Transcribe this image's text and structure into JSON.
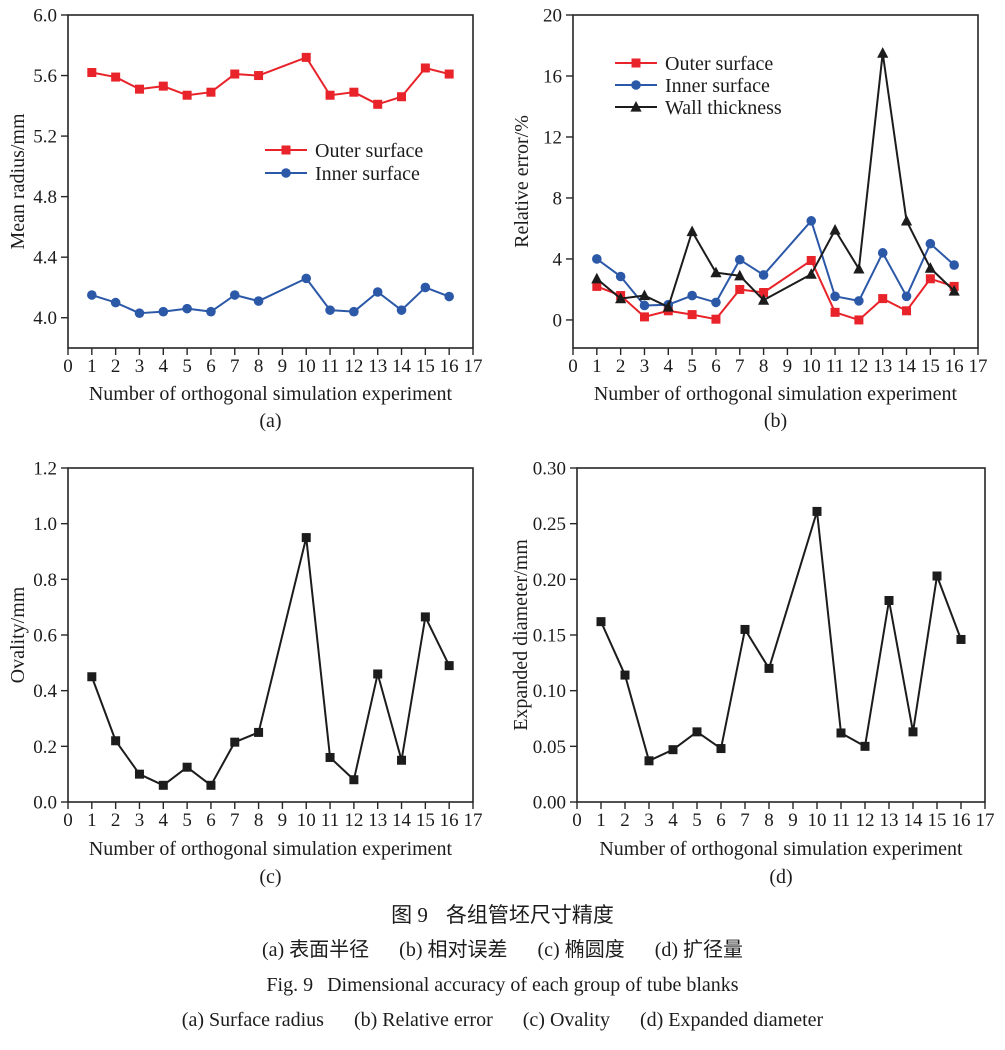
{
  "caption": {
    "zh_title_prefix": "图 9",
    "zh_title": "各组管坯尺寸精度",
    "zh_parts": [
      "(a) 表面半径",
      "(b) 相对误差",
      "(c) 椭圆度",
      "(d) 扩径量"
    ],
    "en_title_prefix": "Fig. 9",
    "en_title": "Dimensional accuracy of each group of tube blanks",
    "en_parts": [
      "(a) Surface radius",
      "(b) Relative error",
      "(c) Ovality",
      "(d) Expanded diameter"
    ]
  },
  "chart_data": [
    {
      "type": "line",
      "tag": "(a)",
      "xlabel": "Number of orthogonal simulation experiment",
      "ylabel": "Mean radius/mm",
      "xlim": [
        0,
        17
      ],
      "ylim": [
        3.8,
        6.0
      ],
      "xticks": [
        "0",
        "1",
        "2",
        "3",
        "4",
        "5",
        "6",
        "7",
        "8",
        "9",
        "10",
        "11",
        "12",
        "13",
        "14",
        "15",
        "16",
        "17"
      ],
      "yticks": [
        "4.0",
        "4.4",
        "4.8",
        "5.2",
        "5.6",
        "6.0"
      ],
      "x": [
        1,
        2,
        3,
        4,
        5,
        6,
        7,
        8,
        10,
        11,
        12,
        13,
        14,
        15,
        16
      ],
      "grid": false,
      "legend_entries": [
        "Outer surface",
        "Inner surface"
      ],
      "series": [
        {
          "name": "Outer surface",
          "color": "#e8232a",
          "marker": "square",
          "values": [
            5.62,
            5.59,
            5.51,
            5.53,
            5.47,
            5.49,
            5.61,
            5.6,
            5.72,
            5.47,
            5.49,
            5.41,
            5.46,
            5.65,
            5.61
          ]
        },
        {
          "name": "Inner surface",
          "color": "#2c58a8",
          "marker": "circle",
          "values": [
            4.15,
            4.1,
            4.03,
            4.04,
            4.06,
            4.04,
            4.15,
            4.11,
            4.26,
            4.05,
            4.04,
            4.17,
            4.05,
            4.2,
            4.14
          ]
        }
      ]
    },
    {
      "type": "line",
      "tag": "(b)",
      "xlabel": "Number of orthogonal simulation experiment",
      "ylabel": "Relative error/%",
      "xlim": [
        0,
        17
      ],
      "ylim": [
        -1.84,
        20
      ],
      "xticks": [
        "0",
        "1",
        "2",
        "3",
        "4",
        "5",
        "6",
        "7",
        "8",
        "9",
        "10",
        "11",
        "12",
        "13",
        "14",
        "15",
        "16",
        "17"
      ],
      "yticks": [
        "0",
        "4",
        "8",
        "12",
        "16",
        "20"
      ],
      "x": [
        1,
        2,
        3,
        4,
        5,
        6,
        7,
        8,
        10,
        11,
        12,
        13,
        14,
        15,
        16
      ],
      "grid": false,
      "legend_entries": [
        "Outer surface",
        "Inner surface",
        "Wall thickness"
      ],
      "series": [
        {
          "name": "Outer surface",
          "color": "#e8232a",
          "marker": "square",
          "values": [
            2.2,
            1.6,
            0.2,
            0.6,
            0.35,
            0.05,
            2.0,
            1.8,
            3.9,
            0.5,
            0.0,
            1.4,
            0.6,
            2.7,
            2.2
          ]
        },
        {
          "name": "Inner surface",
          "color": "#2c58a8",
          "marker": "circle",
          "values": [
            4.0,
            2.85,
            0.95,
            1.0,
            1.6,
            1.15,
            3.95,
            2.95,
            6.5,
            1.55,
            1.25,
            4.4,
            1.55,
            5.0,
            3.6
          ]
        },
        {
          "name": "Wall thickness",
          "color": "#1c1c1c",
          "marker": "triangle",
          "values": [
            2.7,
            1.4,
            1.6,
            0.85,
            5.8,
            3.1,
            2.9,
            1.3,
            3.0,
            5.9,
            3.35,
            17.5,
            6.5,
            3.4,
            1.9
          ]
        }
      ]
    },
    {
      "type": "line",
      "tag": "(c)",
      "xlabel": "Number of orthogonal simulation experiment",
      "ylabel": "Ovality/mm",
      "xlim": [
        0,
        17
      ],
      "ylim": [
        0.0,
        1.2
      ],
      "xticks": [
        "0",
        "1",
        "2",
        "3",
        "4",
        "5",
        "6",
        "7",
        "8",
        "9",
        "10",
        "11",
        "12",
        "13",
        "14",
        "15",
        "16",
        "17"
      ],
      "yticks": [
        "0.0",
        "0.2",
        "0.4",
        "0.6",
        "0.8",
        "1.0",
        "1.2"
      ],
      "x": [
        1,
        2,
        3,
        4,
        5,
        6,
        7,
        8,
        10,
        11,
        12,
        13,
        14,
        15,
        16
      ],
      "grid": false,
      "legend_entries": [],
      "series": [
        {
          "name": "Ovality",
          "color": "#1c1c1c",
          "marker": "square",
          "values": [
            0.45,
            0.22,
            0.1,
            0.06,
            0.125,
            0.06,
            0.215,
            0.25,
            0.95,
            0.16,
            0.08,
            0.46,
            0.15,
            0.665,
            0.49
          ]
        }
      ]
    },
    {
      "type": "line",
      "tag": "(d)",
      "xlabel": "Number of orthogonal simulation experiment",
      "ylabel": "Expanded diameter/mm",
      "xlim": [
        0,
        17
      ],
      "ylim": [
        0.0,
        0.3
      ],
      "xticks": [
        "0",
        "1",
        "2",
        "3",
        "4",
        "5",
        "6",
        "7",
        "8",
        "9",
        "10",
        "11",
        "12",
        "13",
        "14",
        "15",
        "16",
        "17"
      ],
      "yticks": [
        "0.00",
        "0.05",
        "0.10",
        "0.15",
        "0.20",
        "0.25",
        "0.30"
      ],
      "x": [
        1,
        2,
        3,
        4,
        5,
        6,
        7,
        8,
        10,
        11,
        12,
        13,
        14,
        15,
        16
      ],
      "grid": false,
      "legend_entries": [],
      "series": [
        {
          "name": "Expanded diameter",
          "color": "#1c1c1c",
          "marker": "square",
          "values": [
            0.162,
            0.114,
            0.037,
            0.047,
            0.063,
            0.048,
            0.155,
            0.12,
            0.261,
            0.062,
            0.05,
            0.181,
            0.063,
            0.203,
            0.146
          ]
        }
      ]
    }
  ]
}
